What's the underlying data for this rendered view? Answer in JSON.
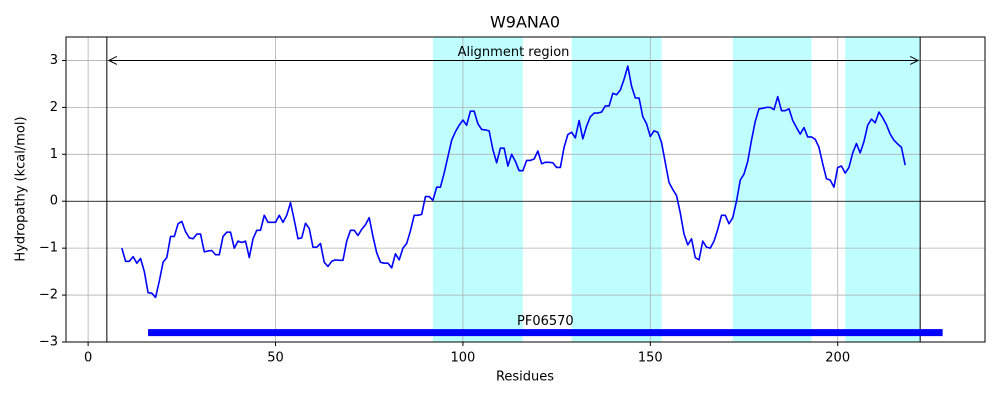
{
  "chart_data": {
    "type": "line",
    "title": "W9ANA0",
    "xlabel": "Residues",
    "ylabel": "Hydropathy (kcal/mol)",
    "xlim": [
      -5.9,
      239.3
    ],
    "ylim": [
      -3,
      3.5
    ],
    "xticks": [
      0,
      50,
      100,
      150,
      200
    ],
    "yticks": [
      {
        "value": -3,
        "label": "−3"
      },
      {
        "value": -2,
        "label": "−2"
      },
      {
        "value": -1,
        "label": "−1"
      },
      0,
      1,
      2,
      3
    ],
    "grid": true,
    "hline": 0,
    "highlight_color": "#00ffff",
    "highlight_regions": [
      [
        92,
        116
      ],
      [
        129,
        153
      ],
      [
        172,
        193
      ],
      [
        202,
        222
      ]
    ],
    "alignment_region": {
      "label": "Alignment region",
      "start": 5,
      "end": 222,
      "y": 3
    },
    "domain": {
      "label": "PF06570",
      "start": 16,
      "end": 228,
      "y": -2.8,
      "color": "#0000ff"
    },
    "series": [
      {
        "color": "#0000ff",
        "x": [
          9,
          10,
          11,
          12,
          13,
          14,
          15,
          16,
          17,
          18,
          19,
          20,
          21,
          22,
          23,
          24,
          25,
          26,
          27,
          28,
          29,
          30,
          31,
          32,
          33,
          34,
          35,
          36,
          37,
          38,
          39,
          40,
          41,
          42,
          43,
          44,
          45,
          46,
          47,
          48,
          49,
          50,
          51,
          52,
          53,
          54,
          55,
          56,
          57,
          58,
          59,
          60,
          61,
          62,
          63,
          64,
          65,
          66,
          67,
          68,
          69,
          70,
          71,
          72,
          73,
          74,
          75,
          76,
          77,
          78,
          79,
          80,
          81,
          82,
          83,
          84,
          85,
          86,
          87,
          88,
          89,
          90,
          91,
          92,
          93,
          94,
          95,
          96,
          97,
          98,
          99,
          100,
          101,
          102,
          103,
          104,
          105,
          106,
          107,
          108,
          109,
          110,
          111,
          112,
          113,
          114,
          115,
          116,
          117,
          118,
          119,
          120,
          121,
          122,
          123,
          124,
          125,
          126,
          127,
          128,
          129,
          130,
          131,
          132,
          133,
          134,
          135,
          136,
          137,
          138,
          139,
          140,
          141,
          142,
          143,
          144,
          145,
          146,
          147,
          148,
          149,
          150,
          151,
          152,
          153,
          154,
          155,
          156,
          157,
          158,
          159,
          160,
          161,
          162,
          163,
          164,
          165,
          166,
          167,
          168,
          169,
          170,
          171,
          172,
          173,
          174,
          175,
          176,
          177,
          178,
          179,
          180,
          181,
          182,
          183,
          184,
          185,
          186,
          187,
          188,
          189,
          190,
          191,
          192,
          193,
          194,
          195,
          196,
          197,
          198,
          199,
          200,
          201,
          202,
          203,
          204,
          205,
          206,
          207,
          208,
          209,
          210,
          211,
          212,
          213,
          214,
          215,
          216,
          217,
          218
        ],
        "values": [
          -1.0,
          -1.28,
          -1.28,
          -1.18,
          -1.32,
          -1.22,
          -1.5,
          -1.95,
          -1.96,
          -2.05,
          -1.7,
          -1.3,
          -1.2,
          -0.75,
          -0.75,
          -0.48,
          -0.43,
          -0.65,
          -0.78,
          -0.8,
          -0.7,
          -0.7,
          -1.08,
          -1.06,
          -1.05,
          -1.14,
          -1.14,
          -0.75,
          -0.66,
          -0.66,
          -1.0,
          -0.85,
          -0.88,
          -0.85,
          -1.2,
          -0.8,
          -0.62,
          -0.62,
          -0.3,
          -0.45,
          -0.45,
          -0.45,
          -0.3,
          -0.45,
          -0.3,
          -0.03,
          -0.4,
          -0.8,
          -0.78,
          -0.47,
          -0.58,
          -0.98,
          -0.98,
          -0.9,
          -1.3,
          -1.39,
          -1.28,
          -1.25,
          -1.26,
          -1.26,
          -0.85,
          -0.62,
          -0.62,
          -0.73,
          -0.6,
          -0.5,
          -0.35,
          -0.75,
          -1.1,
          -1.3,
          -1.32,
          -1.32,
          -1.42,
          -1.12,
          -1.25,
          -1.0,
          -0.9,
          -0.63,
          -0.3,
          -0.3,
          -0.28,
          0.1,
          0.1,
          0.02,
          0.3,
          0.3,
          0.6,
          0.95,
          1.3,
          1.48,
          1.62,
          1.73,
          1.62,
          1.92,
          1.92,
          1.65,
          1.53,
          1.52,
          1.5,
          1.1,
          0.82,
          1.13,
          1.13,
          0.75,
          1.0,
          0.85,
          0.65,
          0.65,
          0.87,
          0.87,
          0.9,
          1.07,
          0.8,
          0.83,
          0.83,
          0.82,
          0.72,
          0.72,
          1.15,
          1.42,
          1.47,
          1.35,
          1.72,
          1.33,
          1.6,
          1.8,
          1.88,
          1.88,
          1.9,
          2.03,
          2.03,
          2.3,
          2.27,
          2.37,
          2.6,
          2.88,
          2.45,
          2.2,
          2.2,
          1.8,
          1.65,
          1.38,
          1.5,
          1.47,
          1.25,
          0.82,
          0.4,
          0.25,
          0.12,
          -0.25,
          -0.7,
          -0.93,
          -0.8,
          -1.2,
          -1.25,
          -0.85,
          -0.98,
          -1.0,
          -0.85,
          -0.6,
          -0.3,
          -0.3,
          -0.48,
          -0.35,
          0.0,
          0.45,
          0.58,
          0.85,
          1.3,
          1.7,
          1.97,
          1.98,
          2.0,
          2.0,
          1.95,
          2.23,
          1.93,
          1.93,
          1.97,
          1.72,
          1.57,
          1.43,
          1.57,
          1.37,
          1.37,
          1.32,
          1.15,
          0.8,
          0.48,
          0.45,
          0.3,
          0.72,
          0.75,
          0.6,
          0.72,
          1.03,
          1.23,
          1.03,
          1.27,
          1.62,
          1.75,
          1.67,
          1.9,
          1.78,
          1.63,
          1.43,
          1.3,
          1.22,
          1.15,
          0.77
        ]
      }
    ]
  }
}
